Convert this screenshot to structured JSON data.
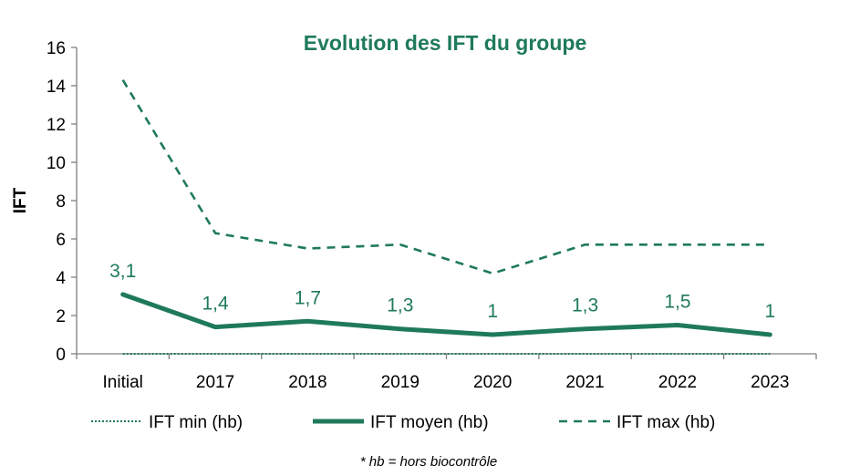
{
  "colors": {
    "series": "#1f7a5a",
    "axis": "#7f7f7f",
    "text": "#000000"
  },
  "footnote": "* hb = hors biocontrôle",
  "chart_data": {
    "type": "line",
    "title": "Evolution des IFT du groupe",
    "xlabel": "",
    "ylabel": "IFT",
    "ylim": [
      0,
      16
    ],
    "yticks": [
      0,
      2,
      4,
      6,
      8,
      10,
      12,
      14,
      16
    ],
    "grid": false,
    "legend_position": "bottom",
    "categories": [
      "Initial",
      "2017",
      "2018",
      "2019",
      "2020",
      "2021",
      "2022",
      "2023"
    ],
    "series": [
      {
        "name": "IFT min (hb)",
        "style": "dotted",
        "values": [
          0,
          0,
          0,
          0,
          0,
          0,
          0,
          0
        ]
      },
      {
        "name": "IFT moyen (hb)",
        "style": "solid",
        "values": [
          3.1,
          1.4,
          1.7,
          1.3,
          1.0,
          1.3,
          1.5,
          1.0
        ],
        "data_labels": [
          "3,1",
          "1,4",
          "1,7",
          "1,3",
          "1",
          "1,3",
          "1,5",
          "1"
        ]
      },
      {
        "name": "IFT max (hb)",
        "style": "dashed",
        "values": [
          14.3,
          6.3,
          5.5,
          5.7,
          4.2,
          5.7,
          5.7,
          5.7
        ]
      }
    ]
  }
}
